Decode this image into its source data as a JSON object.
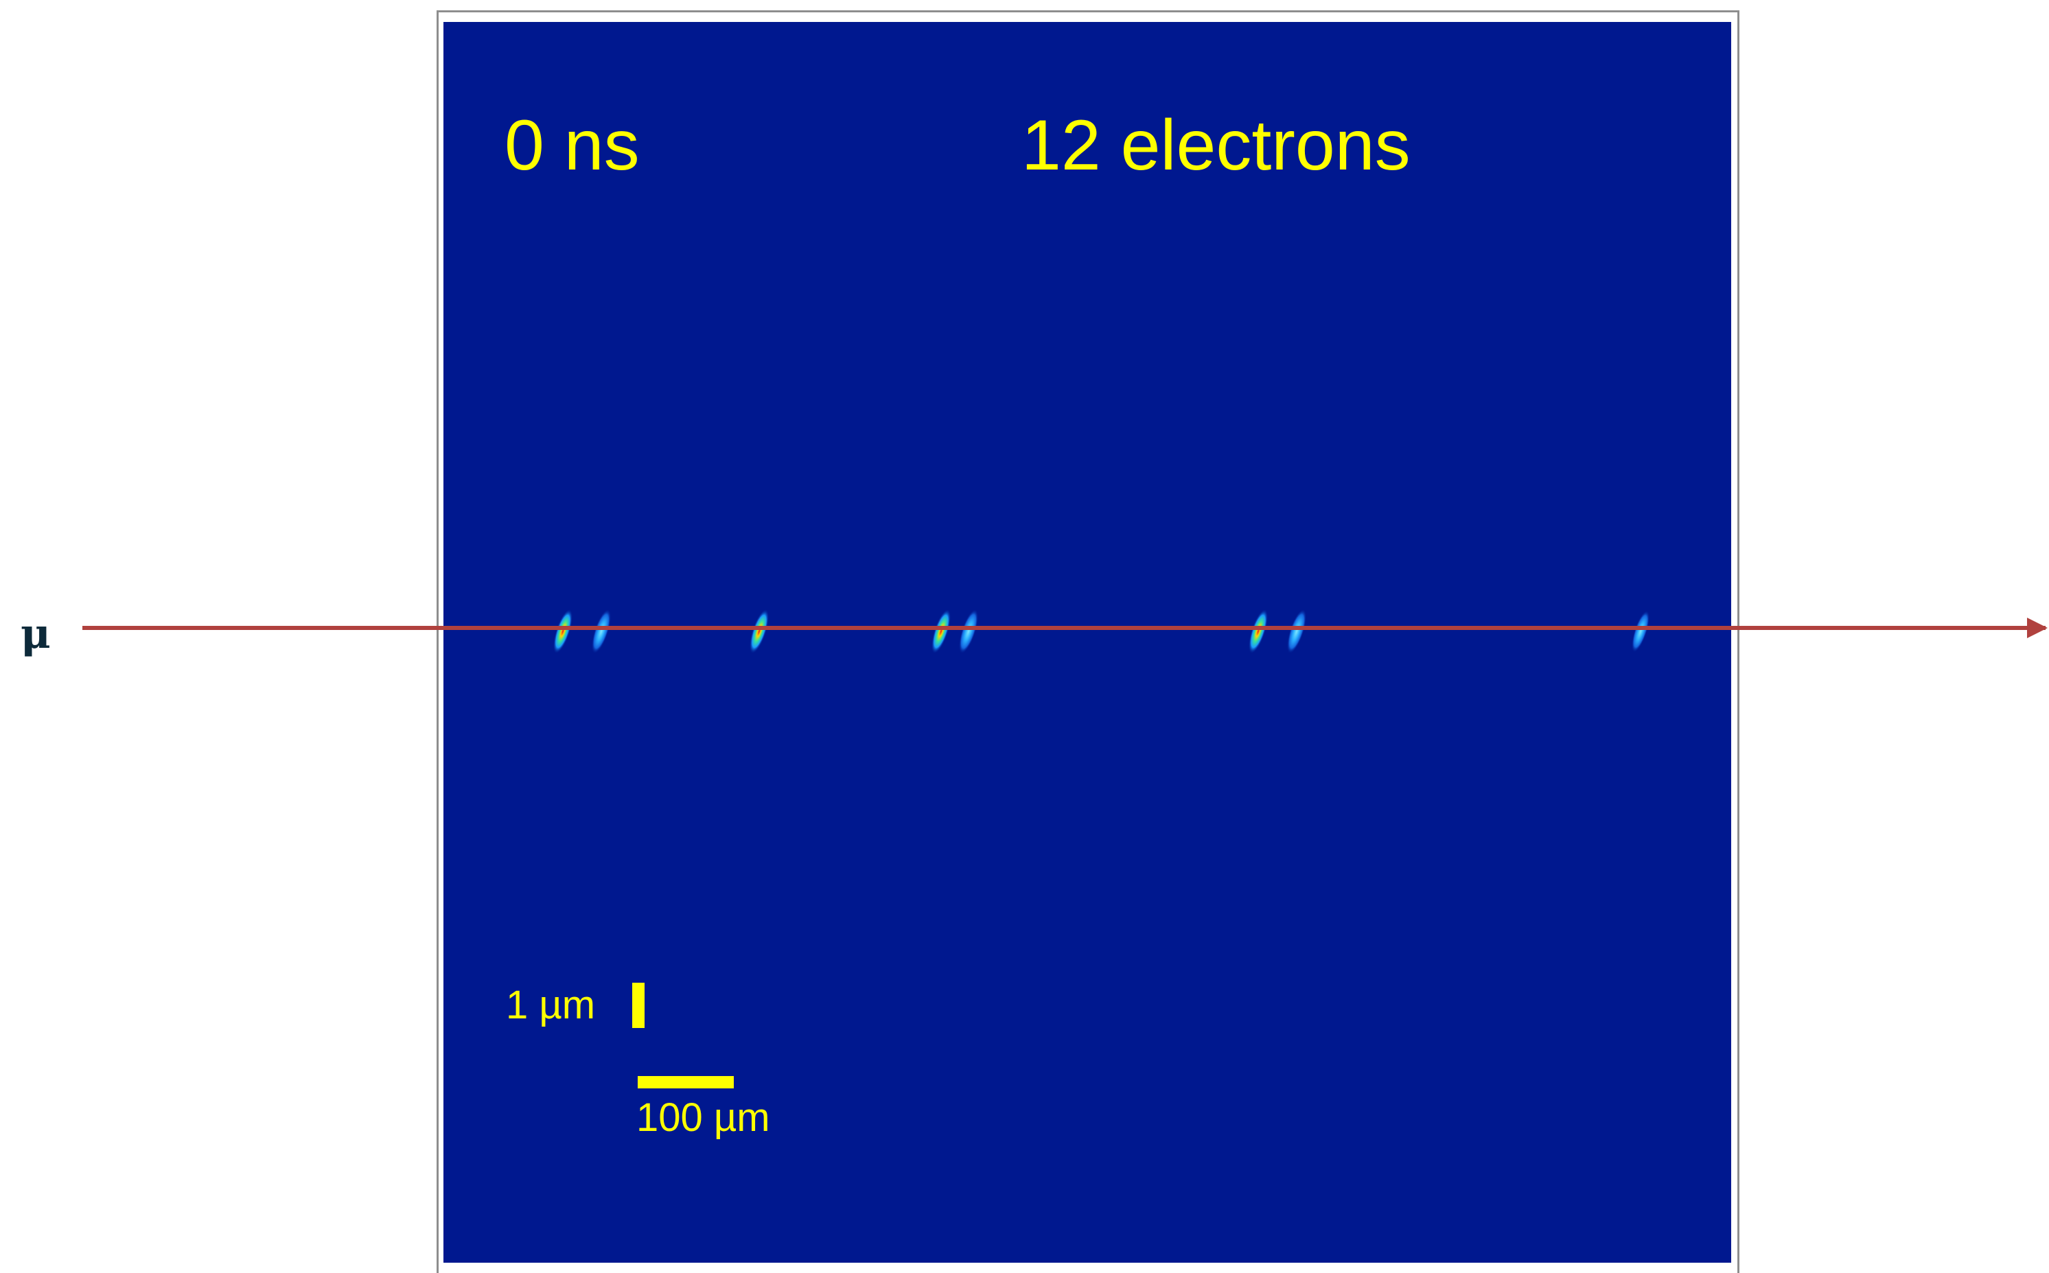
{
  "panel": {
    "time_label": "0 ns",
    "count_label": "12 electrons",
    "background_color": "#00188f",
    "text_color": "#ffff00"
  },
  "scale_bars": {
    "vertical_label": "1 µm",
    "horizontal_label": "100 µm"
  },
  "track": {
    "particle_label": "μ",
    "line_color": "#b0413e"
  },
  "electrons": {
    "count": 12,
    "blob_icon": "electron-blob-icon"
  }
}
